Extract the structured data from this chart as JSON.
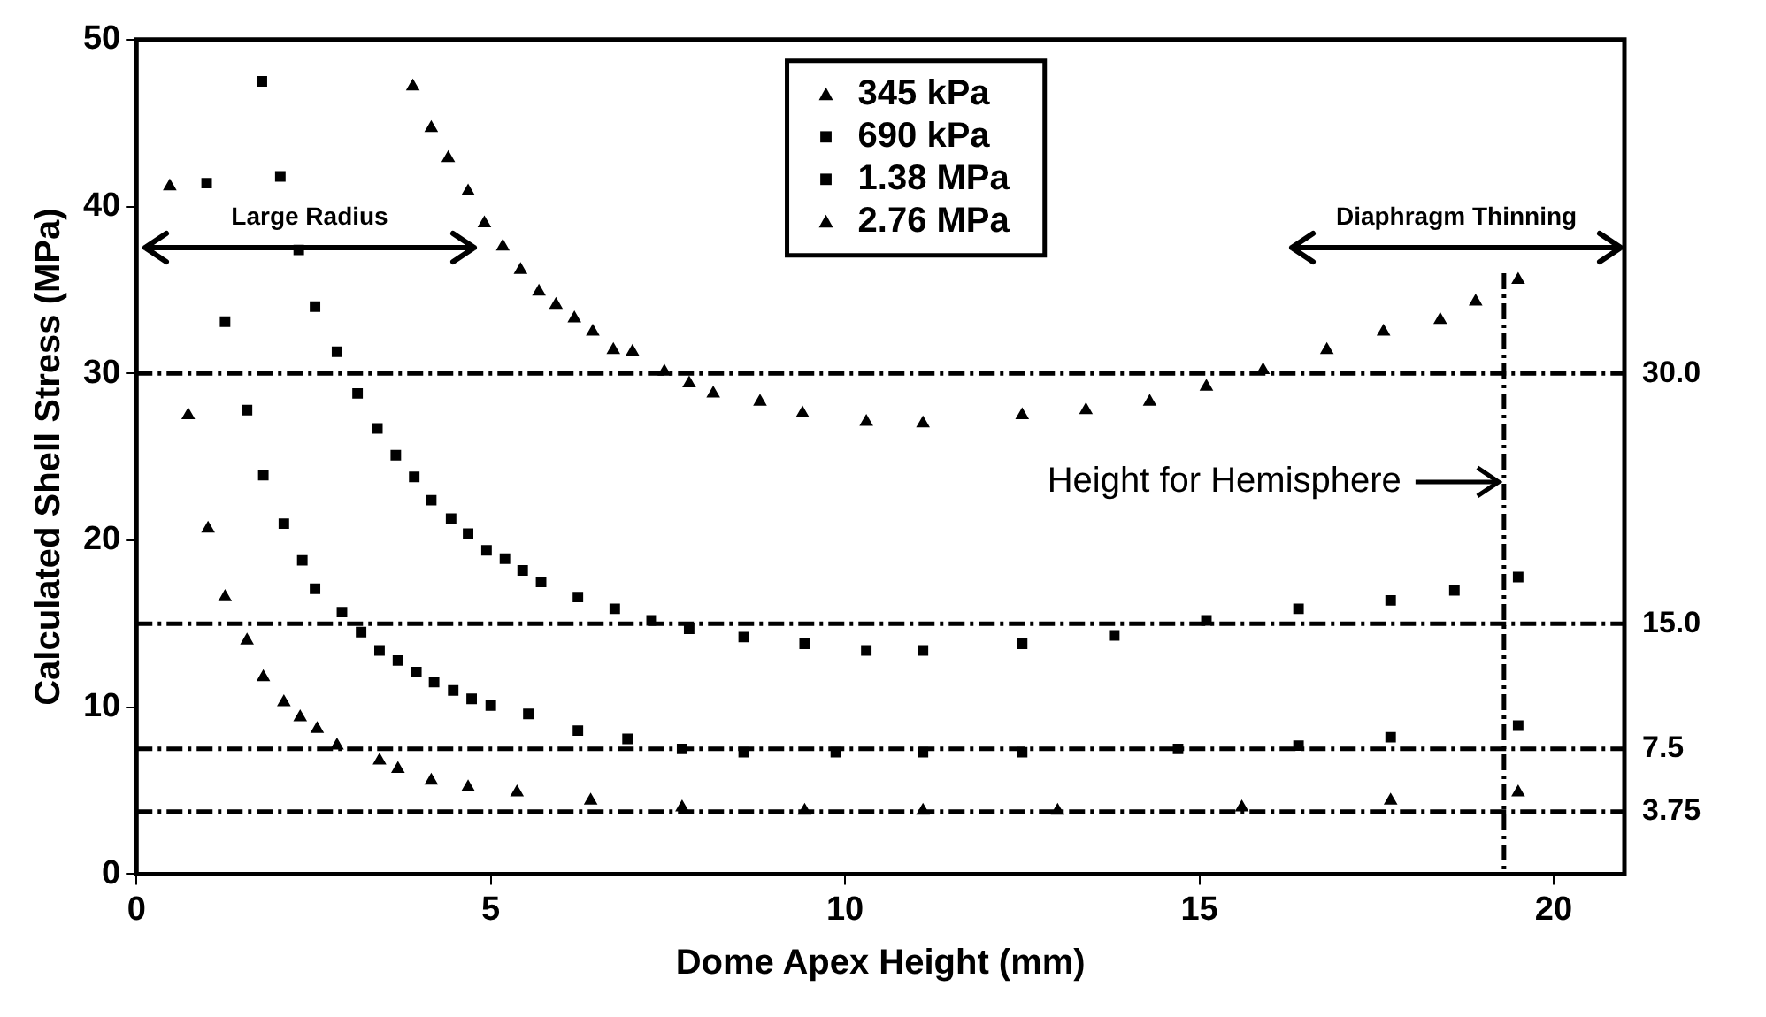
{
  "chart_data": {
    "type": "scatter",
    "xlabel": "Dome Apex Height (mm)",
    "ylabel": "Calculated Shell Stress (MPa)",
    "xlim": [
      0,
      21
    ],
    "xticks": [
      0,
      5,
      10,
      15,
      20
    ],
    "ylim": [
      0,
      50
    ],
    "yticks": [
      0,
      10,
      20,
      30,
      40,
      50
    ],
    "grid": false,
    "legend": "top",
    "series": [
      {
        "name": "345 kPa",
        "color": "#000000",
        "marker": "triangle",
        "x": [
          3.9,
          4.16,
          4.4,
          4.68,
          4.91,
          5.17,
          5.42,
          5.68,
          5.92,
          6.18,
          6.44,
          6.73,
          7.0,
          7.45,
          7.8,
          8.14,
          8.8,
          9.4,
          10.3,
          11.1,
          12.5,
          13.4,
          14.3,
          15.1,
          15.9,
          16.8,
          17.6,
          18.4,
          18.9,
          19.5
        ],
        "values": [
          47.2,
          44.7,
          42.9,
          40.9,
          39.0,
          37.6,
          36.2,
          34.9,
          34.1,
          33.3,
          32.5,
          31.4,
          31.3,
          30.1,
          29.4,
          28.8,
          28.3,
          27.6,
          27.1,
          27.0,
          27.5,
          27.8,
          28.3,
          29.2,
          30.2,
          31.4,
          32.5,
          33.2,
          34.3,
          35.6
        ]
      },
      {
        "name": "690 kPa",
        "color": "#000000",
        "marker": "square",
        "x": [
          1.77,
          2.03,
          2.29,
          2.52,
          2.83,
          3.12,
          3.4,
          3.66,
          3.92,
          4.16,
          4.44,
          4.68,
          4.94,
          5.2,
          5.45,
          5.71,
          6.23,
          6.75,
          7.27,
          7.8,
          8.57,
          9.43,
          10.3,
          11.1,
          12.5,
          13.8,
          15.1,
          16.4,
          17.7,
          18.6,
          19.5
        ],
        "values": [
          47.5,
          41.8,
          37.4,
          34.0,
          31.3,
          28.8,
          26.7,
          25.1,
          23.8,
          22.4,
          21.3,
          20.4,
          19.4,
          18.9,
          18.2,
          17.5,
          16.6,
          15.9,
          15.2,
          14.7,
          14.2,
          13.8,
          13.4,
          13.4,
          13.8,
          14.3,
          15.2,
          15.9,
          16.4,
          17.0,
          17.8
        ]
      },
      {
        "name": "1.38 MPa",
        "color": "#000000",
        "marker": "square",
        "x": [
          0.99,
          1.25,
          1.56,
          1.79,
          2.08,
          2.34,
          2.52,
          2.9,
          3.17,
          3.43,
          3.69,
          3.95,
          4.2,
          4.47,
          4.73,
          5.0,
          5.53,
          6.23,
          6.93,
          7.7,
          8.57,
          9.87,
          11.1,
          12.5,
          14.7,
          16.4,
          17.7,
          19.5
        ],
        "values": [
          41.4,
          33.1,
          27.8,
          23.9,
          21.0,
          18.8,
          17.1,
          15.7,
          14.5,
          13.4,
          12.8,
          12.1,
          11.5,
          11.0,
          10.5,
          10.1,
          9.6,
          8.6,
          8.1,
          7.5,
          7.3,
          7.3,
          7.3,
          7.3,
          7.5,
          7.7,
          8.2,
          8.9
        ]
      },
      {
        "name": "2.76 MPa",
        "color": "#000000",
        "marker": "triangle",
        "x": [
          0.47,
          0.73,
          1.01,
          1.25,
          1.56,
          1.79,
          2.08,
          2.31,
          2.55,
          2.83,
          3.43,
          3.69,
          4.16,
          4.68,
          5.37,
          6.41,
          7.7,
          9.43,
          11.1,
          13.0,
          15.6,
          17.7,
          19.5
        ],
        "values": [
          41.2,
          27.5,
          20.7,
          16.6,
          14.0,
          11.8,
          10.3,
          9.4,
          8.7,
          7.7,
          6.8,
          6.3,
          5.6,
          5.2,
          4.9,
          4.4,
          4.0,
          3.8,
          3.8,
          3.8,
          4.0,
          4.4,
          4.9
        ]
      }
    ],
    "ref_lines": [
      {
        "axis": "y",
        "value": 30,
        "label": "30.0",
        "line_style": "dashed"
      },
      {
        "axis": "y",
        "value": 15,
        "label": "15.0",
        "line_style": "dashed"
      },
      {
        "axis": "y",
        "value": 7.5,
        "label": "7.5",
        "line_style": "dashed"
      },
      {
        "axis": "y",
        "value": 3.75,
        "label": "3.75",
        "line_style": "dashed"
      },
      {
        "axis": "x",
        "value": 19.3,
        "label": "Height for Hemisphere",
        "line_style": "dashed"
      }
    ],
    "annotations": [
      "Large Radius",
      "Diaphragm Thinning"
    ]
  }
}
